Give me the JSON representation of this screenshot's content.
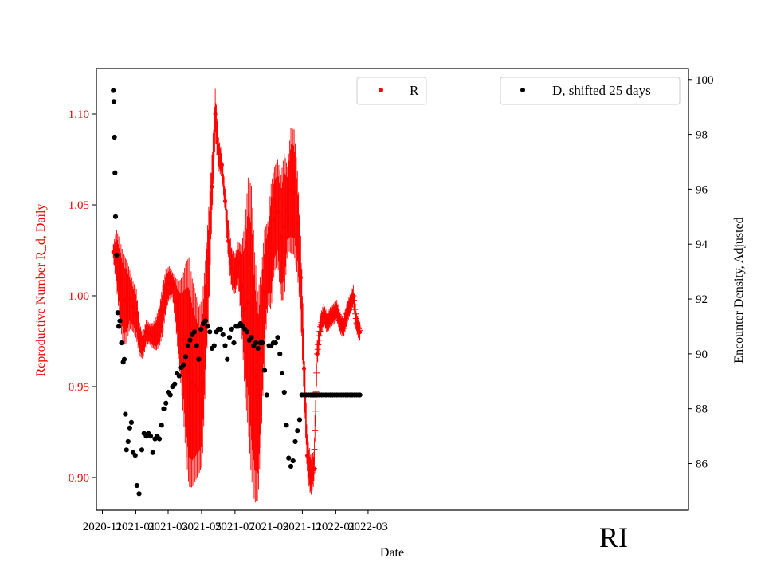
{
  "chart_data": {
    "type": "scatter",
    "watermark": "RI",
    "xlabel": "Date",
    "x_ticks": [
      "2020-11",
      "2021-01",
      "2021-03",
      "2021-05",
      "2021-07",
      "2021-09",
      "2021-11",
      "2022-01",
      "2022-03"
    ],
    "left_axis": {
      "label": "Reproductive Number R_d, Daily",
      "color": "#ff0000",
      "range": [
        0.882,
        1.125
      ],
      "ticks": [
        "0.90",
        "0.95",
        "1.00",
        "1.05",
        "1.10"
      ]
    },
    "right_axis": {
      "label": "Encounter Density, Adjusted",
      "color": "#000000",
      "range": [
        84.3,
        100.4
      ],
      "ticks": [
        "86",
        "88",
        "90",
        "92",
        "94",
        "96",
        "98",
        "100"
      ]
    },
    "legend": [
      {
        "label": "R",
        "color": "#ff0000",
        "position": "top-center"
      },
      {
        "label": "D, shifted 25 days",
        "color": "#000000",
        "position": "top-right"
      }
    ],
    "series": [
      {
        "name": "R",
        "axis": "left",
        "color": "#ff0000",
        "marker": "dot-with-errorbar",
        "day": [
          0,
          6,
          12,
          18,
          24,
          30,
          36,
          42,
          48,
          54,
          60,
          66,
          72,
          78,
          84,
          90,
          96,
          102,
          108,
          114,
          120,
          126,
          132,
          138,
          144,
          150,
          156,
          162,
          168,
          174,
          180,
          186,
          192,
          198,
          204,
          210,
          216,
          222,
          228,
          234,
          240,
          246,
          252,
          258,
          264,
          270,
          276,
          282,
          288,
          294,
          300,
          306,
          312,
          318,
          324,
          330,
          336,
          342,
          348,
          354,
          360,
          366,
          372,
          378,
          384,
          390,
          396,
          402,
          408,
          414,
          420,
          426,
          432,
          438,
          444,
          450
        ],
        "value": [
          1.024,
          1.02,
          1.008,
          0.998,
          0.997,
          0.998,
          0.994,
          0.99,
          0.976,
          0.972,
          0.98,
          0.979,
          0.978,
          0.979,
          0.983,
          0.992,
          1.003,
          1.007,
          1.006,
          0.996,
          0.985,
          0.976,
          0.966,
          0.958,
          0.952,
          0.95,
          0.948,
          0.952,
          0.985,
          1.02,
          1.06,
          1.1,
          1.078,
          1.072,
          1.052,
          1.03,
          1.015,
          1.012,
          1.018,
          1.005,
          0.993,
          0.996,
          0.98,
          0.955,
          0.945,
          0.968,
          1.002,
          1.018,
          1.027,
          1.042,
          1.046,
          1.032,
          1.038,
          1.048,
          1.058,
          1.057,
          1.04,
          1.01,
          0.96,
          0.912,
          0.901,
          0.905,
          0.968,
          0.983,
          0.99,
          0.985,
          0.988,
          0.99,
          0.992,
          0.985,
          0.982,
          0.99,
          0.995,
          1.0,
          0.985,
          0.98
        ],
        "err": [
          0.004,
          0.014,
          0.02,
          0.022,
          0.02,
          0.014,
          0.012,
          0.012,
          0.008,
          0.006,
          0.006,
          0.005,
          0.006,
          0.008,
          0.01,
          0.012,
          0.01,
          0.008,
          0.006,
          0.012,
          0.02,
          0.03,
          0.045,
          0.055,
          0.05,
          0.045,
          0.04,
          0.04,
          0.03,
          0.025,
          0.015,
          0.012,
          0.008,
          0.006,
          0.006,
          0.01,
          0.01,
          0.01,
          0.01,
          0.02,
          0.04,
          0.06,
          0.07,
          0.06,
          0.05,
          0.04,
          0.03,
          0.02,
          0.03,
          0.025,
          0.025,
          0.03,
          0.035,
          0.02,
          0.03,
          0.03,
          0.025,
          0.02,
          0.015,
          0.01,
          0.01,
          0.008,
          0.006,
          0.006,
          0.005,
          0.005,
          0.005,
          0.005,
          0.005,
          0.005,
          0.005,
          0.005,
          0.005,
          0.005,
          0.005,
          0.005
        ]
      },
      {
        "name": "D, shifted 25 days",
        "axis": "right",
        "color": "#000000",
        "marker": "dot",
        "day": [
          0,
          1,
          2,
          3,
          4,
          6,
          8,
          10,
          12,
          15,
          18,
          20,
          22,
          24,
          27,
          30,
          33,
          36,
          40,
          43,
          47,
          52,
          56,
          60,
          64,
          68,
          72,
          76,
          80,
          84,
          88,
          92,
          96,
          100,
          104,
          108,
          112,
          116,
          120,
          124,
          128,
          132,
          136,
          140,
          144,
          148,
          152,
          156,
          160,
          164,
          168,
          172,
          176,
          180,
          184,
          188,
          192,
          196,
          200,
          204,
          208,
          212,
          216,
          220,
          224,
          228,
          232,
          236,
          240,
          244,
          248,
          252,
          256,
          260,
          264,
          268,
          272,
          276,
          280,
          284,
          288,
          292,
          296,
          300,
          304,
          308,
          312,
          316,
          320,
          324,
          328,
          332,
          336,
          340,
          344,
          348,
          352,
          356,
          360,
          362,
          364,
          366,
          368,
          370,
          372,
          376,
          380,
          384,
          388,
          392,
          396,
          400,
          404,
          408,
          412,
          416,
          420,
          424,
          428,
          432,
          436,
          440,
          444,
          448,
          450
        ],
        "value": [
          99.6,
          99.2,
          97.9,
          96.6,
          95.0,
          93.6,
          91.5,
          91.0,
          91.2,
          90.4,
          89.7,
          89.8,
          87.8,
          86.5,
          86.8,
          87.3,
          87.5,
          86.4,
          86.3,
          85.2,
          84.9,
          86.5,
          87.1,
          87.0,
          87.1,
          87.0,
          86.4,
          86.9,
          87.0,
          86.9,
          87.4,
          88.0,
          88.2,
          88.6,
          88.5,
          88.8,
          88.9,
          89.3,
          89.2,
          89.5,
          89.6,
          89.9,
          90.3,
          90.5,
          90.7,
          90.8,
          90.3,
          89.8,
          90.9,
          91.1,
          91.2,
          91.0,
          90.8,
          90.2,
          90.3,
          90.8,
          90.9,
          90.9,
          90.7,
          90.3,
          89.8,
          90.6,
          90.9,
          90.4,
          91.0,
          91.0,
          91.1,
          91.0,
          90.9,
          90.8,
          90.5,
          90.6,
          90.3,
          90.4,
          90.2,
          90.4,
          90.4,
          89.4,
          88.5,
          90.3,
          90.3,
          90.4,
          90.4,
          90.6,
          90.0,
          89.3,
          88.6,
          87.4,
          86.2,
          85.9,
          86.1,
          86.8,
          87.2,
          87.6,
          88.5,
          88.5,
          88.5,
          88.5,
          88.5,
          88.5,
          88.5,
          88.5,
          88.5,
          88.5,
          88.5,
          88.5,
          88.5,
          88.5,
          88.5,
          88.5,
          88.5,
          88.5,
          88.5,
          88.5,
          88.5,
          88.5,
          88.5,
          88.5,
          88.5,
          88.5,
          88.5,
          88.5,
          88.5,
          88.5,
          88.5
        ]
      }
    ]
  }
}
